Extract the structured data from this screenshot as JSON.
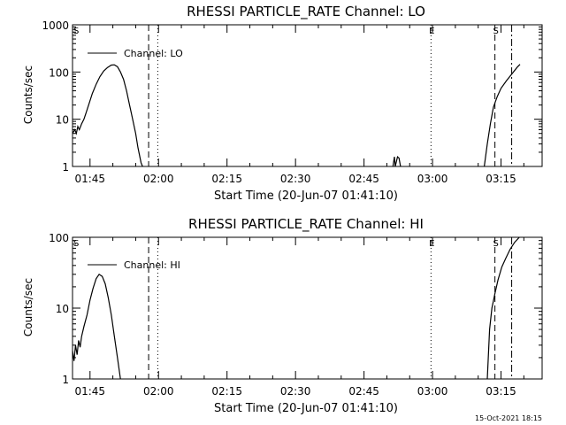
{
  "footer_timestamp": "15-Oct-2021 18:15",
  "chart_data": [
    {
      "type": "line",
      "title": "RHESSI PARTICLE_RATE Channel: LO",
      "xlabel": "Start Time (20-Jun-07 01:41:10)",
      "ylabel": "Counts/sec",
      "yscale": "log",
      "ylim": [
        1,
        1000
      ],
      "xlim": [
        "01:41:10",
        "03:24:00"
      ],
      "x_tick_labels": [
        "01:45",
        "02:00",
        "02:15",
        "02:30",
        "02:45",
        "03:00",
        "03:15"
      ],
      "y_tick_labels": [
        "1",
        "10",
        "100",
        "1000"
      ],
      "legend": {
        "label": "Channel: LO",
        "position": "top-left"
      },
      "markers": [
        {
          "label": "S",
          "time": "01:41:10",
          "style": "none"
        },
        {
          "label": "",
          "time": "01:57:50",
          "style": "dashed"
        },
        {
          "label": "",
          "time": "01:59:50",
          "style": "dotted"
        },
        {
          "label": "E",
          "time": "02:59:40",
          "style": "dotted"
        },
        {
          "label": "S",
          "time": "03:13:40",
          "style": "dashed"
        },
        {
          "label": "",
          "time": "03:17:20",
          "style": "dash-dot"
        }
      ],
      "series": [
        {
          "segments": [
            [
              [
                "01:41:10",
                5
              ],
              [
                "01:41:40",
                6
              ],
              [
                "01:42:00",
                5
              ],
              [
                "01:42:20",
                7
              ],
              [
                "01:42:40",
                6
              ],
              [
                "01:43:10",
                8
              ],
              [
                "01:43:40",
                10
              ],
              [
                "01:44:10",
                14
              ],
              [
                "01:44:50",
                22
              ],
              [
                "01:45:30",
                35
              ],
              [
                "01:46:20",
                55
              ],
              [
                "01:47:10",
                80
              ],
              [
                "01:48:00",
                105
              ],
              [
                "01:48:50",
                125
              ],
              [
                "01:49:40",
                140
              ],
              [
                "01:50:20",
                142
              ],
              [
                "01:51:00",
                130
              ],
              [
                "01:51:40",
                100
              ],
              [
                "01:52:20",
                70
              ],
              [
                "01:53:00",
                40
              ],
              [
                "01:53:40",
                20
              ],
              [
                "01:54:20",
                10
              ],
              [
                "01:55:00",
                5
              ],
              [
                "01:55:30",
                2.5
              ],
              [
                "01:56:10",
                1.2
              ],
              [
                "01:56:30",
                1
              ]
            ],
            [
              [
                "02:51:20",
                1
              ],
              [
                "02:51:40",
                1.6
              ],
              [
                "02:51:50",
                1
              ],
              [
                "02:52:20",
                1.6
              ],
              [
                "02:52:40",
                1.5
              ],
              [
                "02:53:00",
                1
              ]
            ],
            [
              [
                "03:11:20",
                1
              ],
              [
                "03:12:00",
                3
              ],
              [
                "03:12:40",
                8
              ],
              [
                "03:13:20",
                18
              ],
              [
                "03:14:10",
                30
              ],
              [
                "03:15:00",
                45
              ],
              [
                "03:16:10",
                65
              ],
              [
                "03:17:20",
                90
              ],
              [
                "03:18:30",
                125
              ],
              [
                "03:19:10",
                145
              ]
            ]
          ]
        }
      ]
    },
    {
      "type": "line",
      "title": "RHESSI PARTICLE_RATE Channel: HI",
      "xlabel": "Start Time (20-Jun-07 01:41:10)",
      "ylabel": "Counts/sec",
      "yscale": "log",
      "ylim": [
        1,
        100
      ],
      "xlim": [
        "01:41:10",
        "03:24:00"
      ],
      "x_tick_labels": [
        "01:45",
        "02:00",
        "02:15",
        "02:30",
        "02:45",
        "03:00",
        "03:15"
      ],
      "y_tick_labels": [
        "1",
        "10",
        "100"
      ],
      "legend": {
        "label": "Channel: HI",
        "position": "top-left"
      },
      "markers": [
        {
          "label": "S",
          "time": "01:41:10",
          "style": "none"
        },
        {
          "label": "",
          "time": "01:57:50",
          "style": "dashed"
        },
        {
          "label": "",
          "time": "01:59:50",
          "style": "dotted"
        },
        {
          "label": "E",
          "time": "02:59:40",
          "style": "dotted"
        },
        {
          "label": "S",
          "time": "03:13:40",
          "style": "dashed"
        },
        {
          "label": "",
          "time": "03:17:20",
          "style": "dash-dot"
        }
      ],
      "series": [
        {
          "segments": [
            [
              [
                "01:41:10",
                2.5
              ],
              [
                "01:41:30",
                1.8
              ],
              [
                "01:41:50",
                3
              ],
              [
                "01:42:10",
                2.2
              ],
              [
                "01:42:30",
                3.5
              ],
              [
                "01:42:50",
                2.8
              ],
              [
                "01:43:10",
                4
              ],
              [
                "01:43:40",
                5.5
              ],
              [
                "01:44:20",
                8
              ],
              [
                "01:45:00",
                13
              ],
              [
                "01:45:40",
                19
              ],
              [
                "01:46:20",
                26
              ],
              [
                "01:47:00",
                30
              ],
              [
                "01:47:40",
                28
              ],
              [
                "01:48:20",
                22
              ],
              [
                "01:49:00",
                14
              ],
              [
                "01:49:40",
                8
              ],
              [
                "01:50:20",
                4
              ],
              [
                "01:51:00",
                2
              ],
              [
                "01:51:40",
                1
              ]
            ],
            [
              [
                "03:12:00",
                1
              ],
              [
                "03:12:30",
                5
              ],
              [
                "03:13:00",
                10
              ],
              [
                "03:13:40",
                16
              ],
              [
                "03:14:20",
                25
              ],
              [
                "03:15:10",
                38
              ],
              [
                "03:16:00",
                50
              ],
              [
                "03:17:00",
                68
              ],
              [
                "03:18:00",
                85
              ],
              [
                "03:19:00",
                100
              ]
            ]
          ]
        }
      ]
    }
  ]
}
